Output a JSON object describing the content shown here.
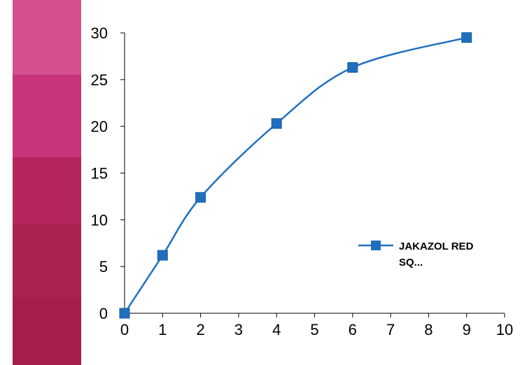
{
  "swatches": [
    {
      "color": "#d4508f"
    },
    {
      "color": "#c8337a"
    },
    {
      "color": "#b5255e"
    },
    {
      "color": "#aa2252"
    },
    {
      "color": "#a51e4c"
    }
  ],
  "chart_data": {
    "type": "line",
    "title": "",
    "xlabel": "",
    "ylabel": "",
    "xlim": [
      0,
      10
    ],
    "ylim": [
      0,
      30
    ],
    "x_ticks": [
      "0",
      "1",
      "2",
      "3",
      "4",
      "5",
      "6",
      "7",
      "8",
      "9",
      "10"
    ],
    "y_ticks": [
      "0",
      "5",
      "10",
      "15",
      "20",
      "25",
      "30"
    ],
    "grid": false,
    "legend_position": "right",
    "series": [
      {
        "name": "JAKAZOL RED SQ...",
        "color": "#1f6fbf",
        "marker": "square",
        "x": [
          0,
          1,
          2,
          4,
          6,
          9
        ],
        "y": [
          0,
          6.2,
          12.4,
          20.3,
          26.3,
          29.5
        ]
      }
    ]
  },
  "legend": {
    "line1": "JAKAZOL RED",
    "line2": "SQ..."
  }
}
